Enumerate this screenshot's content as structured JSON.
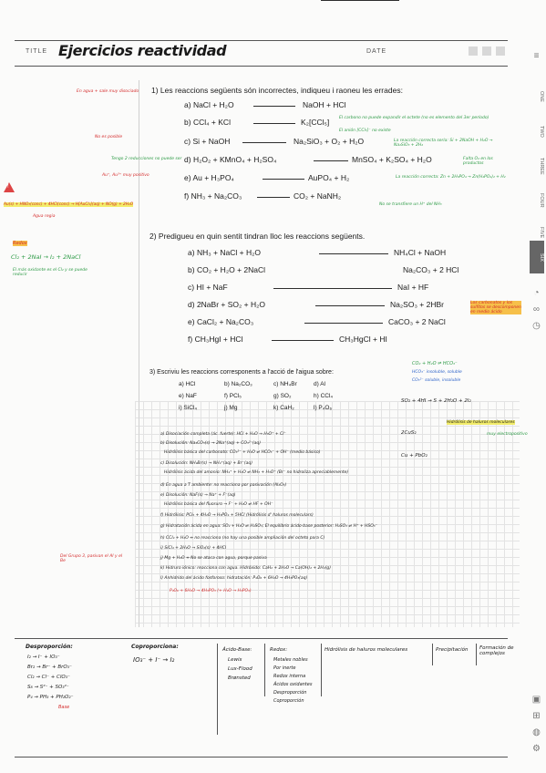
{
  "header": {
    "title_label": "TITLE",
    "title": "Ejercicios reactividad",
    "date_label": "DATE"
  },
  "side_tabs": [
    "ONE",
    "TWO",
    "THREE",
    "FOUR",
    "FIVE",
    "SIX"
  ],
  "q1": {
    "text": "1) Les reaccions següents són incorrectes, indiqueu i raoneu les errades:",
    "items": [
      {
        "label": "a)",
        "eq": "NaCl + H₂O",
        "product": "NaOH + HCl",
        "note": "El carbono no puede expandir el octete (no es elemento del 3er período)"
      },
      {
        "label": "b)",
        "eq": "CCl₄ + KCl",
        "product": "K₂[CCl₅]",
        "note": "El anión [CCl₅]⁻ no existe"
      },
      {
        "label": "c)",
        "eq": "Si + NaOH",
        "product": "Na₂SiO₃ + O₂ + H₂O",
        "note": "La reacción correcta sería: Si + 2NaOH + H₂O → Na₂SiO₃ + 2H₂"
      },
      {
        "label": "d)",
        "eq": "H₂O₂ + KMnO₄ + H₂SO₄",
        "product": "MnSO₄ + K₂SO₄ + H₂O",
        "note": "Falta O₂ en los productos"
      },
      {
        "label": "e)",
        "eq": "Au + H₃PO₄",
        "product": "AuPO₄ + H₂",
        "note": "La reacción correcta: Zn + 2H₃PO₄ → Zn(H₂PO₄)₂ + H₂"
      },
      {
        "label": "f)",
        "eq": "NH₃ + Na₂CO₃",
        "product": "CO₂ + NaNH₂",
        "note": "No se transfiere un H⁺ del NH₃"
      }
    ],
    "margin_notes": [
      "En agua + sale muy disociado",
      "No es posible",
      "Tengo 2 reducciones no puede ser",
      "Au⁺, Au³⁺ muy positivo",
      "Au(s) + HNO₃(conc) + 4HCl(conc) → H[AuCl₄](aq) + NO(g) + 2H₂O",
      "Agua regia"
    ]
  },
  "q2": {
    "text": "2) Predigueu en quin sentit tindran lloc les reaccions següents.",
    "items": [
      {
        "label": "a)",
        "left": "NH₃ + NaCl + H₂O",
        "right": "NH₄Cl + NaOH"
      },
      {
        "label": "b)",
        "left": "CO₂ + H₂O + 2NaCl",
        "right": "Na₂CO₃ + 2 HCl"
      },
      {
        "label": "c)",
        "left": "HI + NaF",
        "right": "NaI + HF"
      },
      {
        "label": "d)",
        "left": "2NaBr + SO₂ + H₂O",
        "right": "Na₂SO₃ + 2HBr"
      },
      {
        "label": "e)",
        "left": "CaCl₂ + Na₂CO₃",
        "right": "CaCO₃ + 2 NaCl"
      },
      {
        "label": "f)",
        "left": "CH₃HgI + HCl",
        "right": "CH₃HgCl + HI"
      }
    ],
    "margin_notes": [
      "Redox",
      "Cl₂ + 2NaI → I₂ + 2NaCl",
      "El más oxidante es el Cl₂ y se puede reducir",
      "Los carbonatos y los sulfitos se descomponen en medio ácido"
    ]
  },
  "q3": {
    "text": "3) Escriviu les reaccions corresponents a l'acció de l'aigua sobre:",
    "rows": [
      [
        "a) HCl",
        "b) Na₂CO₃",
        "c) NH₄Br",
        "d) Al"
      ],
      [
        "e) NaF",
        "f) PCl₅",
        "g) SO₂",
        "h) CCl₄"
      ],
      [
        "i) SiCl₄",
        "j) Mg",
        "k) CaH₂",
        "l) P₄O₆"
      ]
    ],
    "notes": [
      "CO₂ + H₂O ⇌ HCO₃⁻",
      "HCO₃⁻ insoluble, soluble",
      "CO₃²⁻ soluble, insoluble",
      "SO₂ + 4HI → S + 2H₂O + 2I₂",
      "2CuS₂",
      "Cu + PbO₂",
      "Hidrólisis de haluros moleculares",
      "muy electropositivo"
    ]
  },
  "answers": [
    "a) Disociación completa (ác. fuerte): HCl + H₂O → H₃O⁺ + Cl⁻",
    "b) Disolución: Na₂CO₃(s) → 2Na⁺(aq) + CO₃²⁻(aq)",
    "Hidrólisis básica del carbonato: CO₃²⁻ + H₂O ⇌ HCO₃⁻ + OH⁻ (medio básico)",
    "c) Disolución: NH₄Br(s) → NH₄⁺(aq) + Br⁻(aq)",
    "Hidrólisis ácida del amonio: NH₄⁺ + H₂O ⇌ NH₃ + H₃O⁺ (Br⁻ no hidroliza apreciablemente)",
    "d) En agua a T ambiente: no reacciona por pasivación (Al₂O₃)",
    "e) Disolución: NaF(s) → Na⁺ + F⁻(aq)",
    "Hidrólisis básica del fluoruro → F⁻ + H₂O ⇌ HF + OH⁻",
    "f) Hidrólisis: PCl₅ + 4H₂O → H₃PO₄ + 5HCl (Hidrólisis d' haluros moleculars)",
    "g) Hidratación ácida en agua: SO₂ + H₂O ⇌ H₂SO₃; El equilibrio ácido-base posterior: H₂SO₃ ⇌ H⁺ + HSO₃⁻",
    "h) CCl₄ + H₂O ↛ no reacciona (no hay una posible ampliación del octeto para C)",
    "i) SiCl₄ + 2H₂O → SiO₂(s) + 4HCl",
    "j) Mg + H₂O ↛ No se ataca con agua, porque pasiva",
    "k) Hidruro iónico: reacciona con agua. Hidróxido: CaH₂ + 2H₂O → Ca(OH)₂ + 2H₂(g)",
    "l) Anhídrido del ácido fosforoso: hidratación: P₄O₆ + 6H₂O → 4H₃PO₃(aq)",
    "P₄O₆ + 6H₂O → 4H₃PO₃ (+ H₂O → H₃PO₃)"
  ],
  "answers_margin": [
    "Del Grupo 3, pasivan el Al y el Be"
  ],
  "bottom": {
    "dismutation_title": "Desproporción:",
    "dismutation": [
      "I₂ → I⁻ + IO₃⁻",
      "Br₂ → Br⁻ + BrO₃⁻",
      "Cl₂ → Cl⁻ + ClO₃⁻",
      "S₈ → S²⁻ + SO₃²⁻",
      "P₄ → PH₃ + PH₂O₂⁻"
    ],
    "base_label": "Base",
    "comprop_title": "Coproporciona:",
    "comprop": "IO₃⁻ + I⁻ → I₂",
    "table_headers": [
      "Ácido-Base:",
      "Redox:",
      "Hidrólisis de haluros moleculares",
      "Precipitación",
      "Formación de complejos"
    ],
    "acid_base": [
      "Lewis",
      "Lux-Flood",
      "Brønsted"
    ],
    "redox": [
      "Metales nobles",
      "Por inerte",
      "Redox interna",
      "Ácidos oxidantes",
      "Desproporción",
      "Coproporción"
    ]
  }
}
